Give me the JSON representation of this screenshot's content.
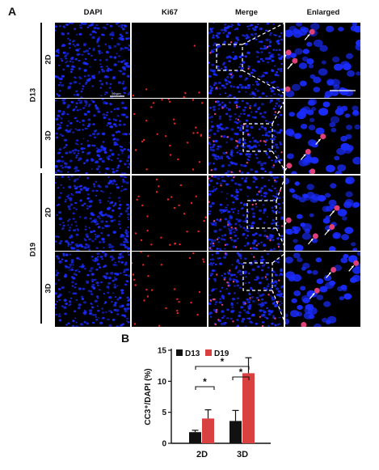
{
  "figure": {
    "panel_a_label": "A",
    "panel_b_label": "B",
    "columns": [
      "DAPI",
      "Ki67",
      "Merge",
      "Enlarged"
    ],
    "groups": [
      {
        "label": "D13",
        "rows": [
          "2D",
          "3D"
        ]
      },
      {
        "label": "D19",
        "rows": [
          "2D",
          "3D"
        ]
      }
    ],
    "scale_bar_label": "50 µm",
    "colors": {
      "dapi": "#1a2cff",
      "ki67": "#e8231f",
      "background": "#000000",
      "bar_d13": "#111111",
      "bar_d19": "#d94040"
    }
  },
  "chart_data": {
    "type": "bar",
    "categories": [
      "2D",
      "3D"
    ],
    "series": [
      {
        "name": "D13",
        "values": [
          1.8,
          3.6
        ],
        "errors": [
          0.3,
          1.7
        ],
        "color": "#111111"
      },
      {
        "name": "D19",
        "values": [
          4.0,
          11.3
        ],
        "errors": [
          1.4,
          2.5
        ],
        "color": "#d94040"
      }
    ],
    "ylabel": "CC3⁺/DAPI (%)",
    "xlabel": "",
    "yticks": [
      0,
      5,
      10,
      15
    ],
    "ylim": [
      0,
      15
    ],
    "legend_position": "top-left",
    "significance": [
      "*",
      "*",
      "*"
    ]
  }
}
